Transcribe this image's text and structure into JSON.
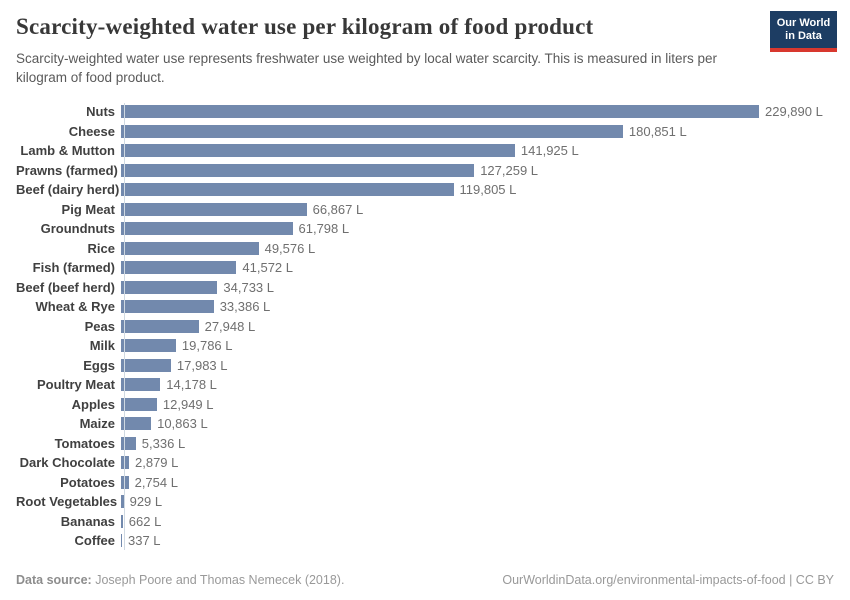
{
  "header": {
    "title": "Scarcity-weighted water use per kilogram of food product",
    "subtitle": "Scarcity-weighted water use represents freshwater use weighted by local water scarcity. This is measured in liters per kilogram of food product.",
    "logo": {
      "line1": "Our World",
      "line2": "in Data"
    }
  },
  "chart_data": {
    "type": "bar",
    "orientation": "horizontal",
    "title": "Scarcity-weighted water use per kilogram of food product",
    "unit": "liters per kilogram",
    "xlim": [
      0,
      229890
    ],
    "grid": false,
    "legend": "none",
    "bar_color": "#7289ad",
    "axis_line_color": "#cfd9e2",
    "categories": [
      "Nuts",
      "Cheese",
      "Lamb & Mutton",
      "Prawns (farmed)",
      "Beef (dairy herd)",
      "Pig Meat",
      "Groundnuts",
      "Rice",
      "Fish (farmed)",
      "Beef (beef herd)",
      "Wheat & Rye",
      "Peas",
      "Milk",
      "Eggs",
      "Poultry Meat",
      "Apples",
      "Maize",
      "Tomatoes",
      "Dark Chocolate",
      "Potatoes",
      "Root Vegetables",
      "Bananas",
      "Coffee"
    ],
    "values": [
      229890,
      180851,
      141925,
      127259,
      119805,
      66867,
      61798,
      49576,
      41572,
      34733,
      33386,
      27948,
      19786,
      17983,
      14178,
      12949,
      10863,
      5336,
      2879,
      2754,
      929,
      662,
      337
    ],
    "value_labels": [
      "229,890 L",
      "180,851 L",
      "141,925 L",
      "127,259 L",
      "119,805 L",
      "66,867 L",
      "61,798 L",
      "49,576 L",
      "41,572 L",
      "34,733 L",
      "33,386 L",
      "27,948 L",
      "19,786 L",
      "17,983 L",
      "14,178 L",
      "12,949 L",
      "10,863 L",
      "5,336 L",
      "2,879 L",
      "2,754 L",
      "929 L",
      "662 L",
      "337 L"
    ]
  },
  "footer": {
    "datasource_label": "Data source:",
    "datasource_text": " Joseph Poore and Thomas Nemecek (2018).",
    "link_text": "OurWorldinData.org/environmental-impacts-of-food | CC BY"
  },
  "colors": {
    "logo_bg": "#1d3d63",
    "logo_accent": "#d8382e",
    "bar": "#7289ad",
    "title_text": "#383838",
    "subtitle_text": "#5a5a5a",
    "category_text": "#404040",
    "value_text": "#6f6f6f",
    "footer_text": "#999999"
  }
}
